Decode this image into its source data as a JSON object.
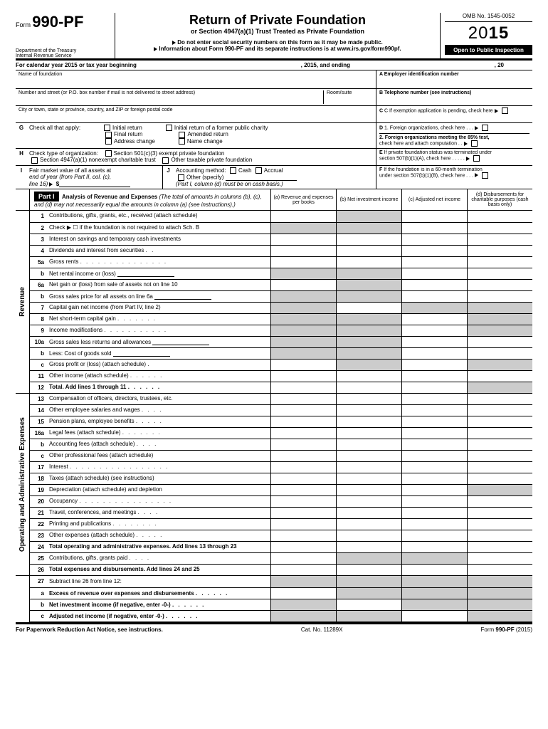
{
  "form": {
    "word": "Form",
    "number": "990-PF",
    "dept1": "Department of the Treasury",
    "dept2": "Internal Revenue Service",
    "title": "Return of Private Foundation",
    "subtitle": "or Section 4947(a)(1) Trust Treated as Private Foundation",
    "warn": "Do not enter social security numbers on this form as it may be made public.",
    "info": "Information about Form 990-PF and its separate instructions is at www.irs.gov/form990pf.",
    "omb": "OMB No. 1545-0052",
    "year_prefix": "20",
    "year_suffix": "15",
    "oti": "Open to Public Inspection"
  },
  "calyear": {
    "a": "For calendar year 2015 or tax year beginning",
    "b": ", 2015, and ending",
    "c": ", 20"
  },
  "top": {
    "name": "Name of foundation",
    "a": "A  Employer identification number",
    "addr": "Number and street (or P.O. box number if mail is not delivered to street address)",
    "room": "Room/suite",
    "b": "B  Telephone number (see instructions)",
    "city": "City or town, state or province, country, and ZIP or foreign postal code",
    "c": "C  If exemption application is pending, check here",
    "g": "Check all that apply:",
    "g1": "Initial return",
    "g2": "Initial return of a former public charity",
    "g3": "Final return",
    "g4": "Amended return",
    "g5": "Address change",
    "g6": "Name change",
    "d1": "1. Foreign organizations, check here",
    "d2a": "2. Foreign organizations meeting the 85% test,",
    "d2b": "check here and attach computation",
    "h": "Check type of organization:",
    "h1": "Section 501(c)(3) exempt private foundation",
    "h2": "Section 4947(a)(1) nonexempt charitable trust",
    "h3": "Other taxable private foundation",
    "e1": "If private foundation status was terminated under",
    "e2": "section 507(b)(1)(A), check here",
    "i1": "Fair market value of all assets at",
    "i2": "end of year  (from Part II, col. (c),",
    "i3": "line 16)",
    "j": "Accounting method:",
    "j1": "Cash",
    "j2": "Accrual",
    "j3": "Other (specify)",
    "jnote": "(Part I, column (d) must be on cash basis.)",
    "f1": "If the foundation is in a 60-month termination",
    "f2": "under section 507(b)(1)(B), check here"
  },
  "part1": {
    "label": "Part I",
    "title": "Analysis of Revenue and Expenses",
    "note": "(The total of amounts in columns (b), (c), and (d) may not necessarily equal the amounts in column (a) (see instructions).)",
    "cola": "(a) Revenue and expenses per books",
    "colb": "(b) Net investment income",
    "colc": "(c) Adjusted net income",
    "cold": "(d) Disbursements for charitable purposes (cash basis only)"
  },
  "revenue_label": "Revenue",
  "opex_label": "Operating and Administrative Expenses",
  "lines": [
    {
      "n": "1",
      "t": "Contributions, gifts, grants, etc., received (attach schedule)",
      "g": [
        "",
        "bcd",
        "",
        ""
      ]
    },
    {
      "n": "2",
      "t": "Check ▶ ☐  if the foundation is not required to attach Sch. B",
      "g": [
        "a",
        "bcd",
        "",
        ""
      ]
    },
    {
      "n": "3",
      "t": "Interest on savings and temporary cash investments",
      "g": [
        "",
        "",
        "",
        ""
      ]
    },
    {
      "n": "4",
      "t": "Dividends and interest from securities",
      "g": [
        "",
        "",
        "",
        ""
      ]
    },
    {
      "n": "5a",
      "t": "Gross rents",
      "g": [
        "",
        "",
        "",
        ""
      ]
    },
    {
      "n": "b",
      "t": "Net rental income or (loss)",
      "g": [
        "a",
        "bcd",
        "",
        ""
      ],
      "inline": true
    },
    {
      "n": "6a",
      "t": "Net gain or (loss) from sale of assets not on line 10",
      "g": [
        "",
        "bcd",
        "",
        ""
      ]
    },
    {
      "n": "b",
      "t": "Gross sales price for all assets on line 6a",
      "g": [
        "a",
        "bcd",
        "",
        ""
      ],
      "inline": true
    },
    {
      "n": "7",
      "t": "Capital gain net income (from Part IV, line 2)",
      "g": [
        "a",
        "",
        "c",
        "d"
      ]
    },
    {
      "n": "8",
      "t": "Net short-term capital gain",
      "g": [
        "a",
        "b",
        "",
        "d"
      ]
    },
    {
      "n": "9",
      "t": "Income modifications",
      "g": [
        "a",
        "b",
        "",
        "d"
      ]
    },
    {
      "n": "10a",
      "t": "Gross sales less returns and allowances",
      "g": [
        "a",
        "bcd",
        "",
        ""
      ],
      "inline": true
    },
    {
      "n": "b",
      "t": "Less: Cost of goods sold",
      "g": [
        "a",
        "bcd",
        "",
        ""
      ],
      "inline": true
    },
    {
      "n": "c",
      "t": "Gross profit or (loss) (attach schedule)",
      "g": [
        "",
        "b",
        "",
        "d"
      ]
    },
    {
      "n": "11",
      "t": "Other income (attach schedule)",
      "g": [
        "",
        "",
        "",
        ""
      ]
    },
    {
      "n": "12",
      "t": "Total. Add lines 1 through 11",
      "g": [
        "",
        "",
        "",
        "d"
      ],
      "bold": true
    }
  ],
  "opex": [
    {
      "n": "13",
      "t": "Compensation of officers, directors, trustees, etc.",
      "g": [
        "",
        "",
        "",
        ""
      ]
    },
    {
      "n": "14",
      "t": "Other employee salaries and wages",
      "g": [
        "",
        "",
        "",
        ""
      ]
    },
    {
      "n": "15",
      "t": "Pension plans, employee benefits",
      "g": [
        "",
        "",
        "",
        ""
      ]
    },
    {
      "n": "16a",
      "t": "Legal fees (attach schedule)",
      "g": [
        "",
        "",
        "",
        ""
      ]
    },
    {
      "n": "b",
      "t": "Accounting fees (attach schedule)",
      "g": [
        "",
        "",
        "",
        ""
      ]
    },
    {
      "n": "c",
      "t": "Other professional fees (attach schedule)",
      "g": [
        "",
        "",
        "",
        ""
      ]
    },
    {
      "n": "17",
      "t": "Interest",
      "g": [
        "",
        "",
        "",
        ""
      ]
    },
    {
      "n": "18",
      "t": "Taxes (attach schedule) (see instructions)",
      "g": [
        "",
        "",
        "",
        ""
      ]
    },
    {
      "n": "19",
      "t": "Depreciation (attach schedule) and depletion",
      "g": [
        "",
        "",
        "",
        "d"
      ]
    },
    {
      "n": "20",
      "t": "Occupancy",
      "g": [
        "",
        "",
        "",
        ""
      ]
    },
    {
      "n": "21",
      "t": "Travel, conferences, and meetings",
      "g": [
        "",
        "",
        "",
        ""
      ]
    },
    {
      "n": "22",
      "t": "Printing and publications",
      "g": [
        "",
        "",
        "",
        ""
      ]
    },
    {
      "n": "23",
      "t": "Other expenses (attach schedule)",
      "g": [
        "",
        "",
        "",
        ""
      ]
    },
    {
      "n": "24",
      "t": "Total operating and administrative expenses. Add lines 13 through 23",
      "g": [
        "",
        "",
        "",
        ""
      ],
      "bold": true,
      "two": true
    },
    {
      "n": "25",
      "t": "Contributions, gifts, grants paid",
      "g": [
        "",
        "b",
        "c",
        ""
      ]
    },
    {
      "n": "26",
      "t": "Total expenses and disbursements. Add lines 24 and 25",
      "g": [
        "",
        "",
        "",
        ""
      ],
      "bold": true
    }
  ],
  "tail": [
    {
      "n": "27",
      "t": "Subtract line 26 from line 12:"
    },
    {
      "n": "a",
      "t": "Excess of revenue over expenses and disbursements",
      "bold": true,
      "g": [
        "",
        "b",
        "c",
        "d"
      ]
    },
    {
      "n": "b",
      "t": "Net investment income (if negative, enter -0-)",
      "bold": true,
      "g": [
        "a",
        "",
        "c",
        "d"
      ]
    },
    {
      "n": "c",
      "t": "Adjusted net income (if negative, enter -0-)",
      "bold": true,
      "g": [
        "a",
        "b",
        "",
        "d"
      ]
    }
  ],
  "footer": {
    "left": "For Paperwork Reduction Act Notice, see instructions.",
    "mid": "Cat. No. 11289X",
    "right_a": "Form ",
    "right_b": "990-PF",
    "right_c": " (2015)"
  }
}
